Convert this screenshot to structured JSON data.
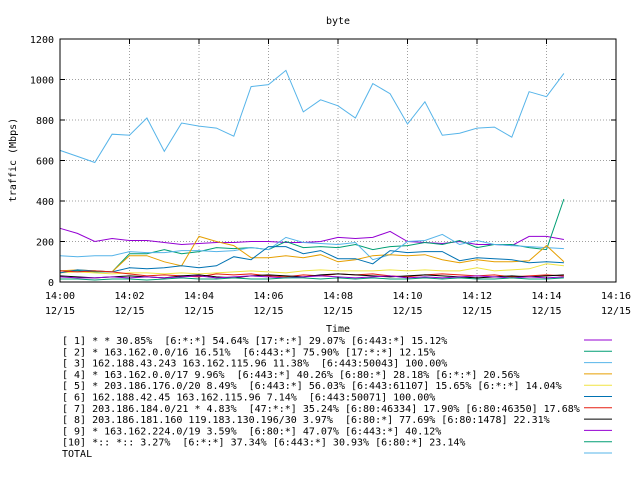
{
  "chart_data": {
    "type": "line",
    "title": "byte",
    "xlabel": "Time",
    "ylabel": "traffic (Mbps)",
    "ylim": [
      0,
      1200
    ],
    "yticks": [
      "0",
      "200",
      "400",
      "600",
      "800",
      "1000",
      "1200"
    ],
    "xlim": [
      0,
      16
    ],
    "xunits": "minutes after 14:00 on 12/15",
    "xticks": [
      {
        "time": "14:00",
        "date": "12/15"
      },
      {
        "time": "14:02",
        "date": "12/15"
      },
      {
        "time": "14:04",
        "date": "12/15"
      },
      {
        "time": "14:06",
        "date": "12/15"
      },
      {
        "time": "14:08",
        "date": "12/15"
      },
      {
        "time": "14:10",
        "date": "12/15"
      },
      {
        "time": "14:12",
        "date": "12/15"
      },
      {
        "time": "14:14",
        "date": "12/15"
      },
      {
        "time": "14:16",
        "date": "12/15"
      }
    ],
    "grid": true,
    "legend_position": "bottom",
    "x": [
      0,
      0.5,
      1,
      1.5,
      2,
      2.5,
      3,
      3.5,
      4,
      4.5,
      5,
      5.5,
      6,
      6.5,
      7,
      7.5,
      8,
      8.5,
      9,
      9.5,
      10,
      10.5,
      11,
      11.5,
      12,
      12.5,
      13,
      13.5,
      14,
      14.5
    ],
    "series": [
      {
        "name": "[ 1] * * 30.85%  [6:*:*] 54.64% [17:*:*] 29.07% [6:443:*] 15.12%",
        "color": "#9400d3",
        "values": [
          265,
          240,
          200,
          215,
          205,
          205,
          195,
          185,
          190,
          195,
          195,
          200,
          200,
          195,
          195,
          200,
          220,
          215,
          220,
          250,
          200,
          195,
          190,
          200,
          185,
          185,
          180,
          225,
          225,
          210
        ]
      },
      {
        "name": "[ 2] * 163.162.0.0/16 16.51%  [6:443:*] 75.90% [17:*:*] 12.15%",
        "color": "#009e73",
        "values": [
          55,
          55,
          50,
          50,
          140,
          140,
          160,
          140,
          150,
          170,
          165,
          170,
          160,
          200,
          170,
          175,
          170,
          185,
          160,
          175,
          180,
          195,
          185,
          205,
          170,
          185,
          185,
          170,
          160,
          410
        ]
      },
      {
        "name": "[ 3] 162.188.43.243 163.162.115.96 11.38%  [6:443:50043] 100.00%",
        "color": "#56b4e9",
        "values": [
          130,
          125,
          130,
          130,
          150,
          145,
          145,
          155,
          155,
          150,
          155,
          170,
          160,
          220,
          195,
          190,
          185,
          195,
          110,
          135,
          200,
          205,
          235,
          185,
          205,
          185,
          180,
          175,
          170,
          165
        ]
      },
      {
        "name": "[ 4] * 163.162.0.0/17 9.96%  [6:443:*] 40.26% [6:80:*] 28.18% [6:*:*] 20.56%",
        "color": "#e69f00",
        "values": [
          55,
          60,
          55,
          50,
          130,
          130,
          100,
          80,
          225,
          200,
          180,
          120,
          120,
          130,
          120,
          135,
          100,
          110,
          130,
          135,
          130,
          135,
          110,
          95,
          110,
          100,
          100,
          105,
          180,
          100
        ]
      },
      {
        "name": "[ 5] * 203.186.176.0/20 8.49%  [6:443:*] 56.03% [6:443:61107] 15.65% [6:*:*] 14.04%",
        "color": "#f0e442",
        "values": [
          45,
          50,
          45,
          40,
          45,
          45,
          40,
          45,
          40,
          45,
          50,
          55,
          50,
          45,
          55,
          60,
          55,
          55,
          55,
          60,
          55,
          60,
          55,
          55,
          70,
          55,
          60,
          65,
          90,
          80
        ]
      },
      {
        "name": "[ 6] 162.188.42.45 163.162.115.96 7.14%  [6:443:50071] 100.00%",
        "color": "#0072b2",
        "values": [
          45,
          60,
          55,
          50,
          70,
          65,
          70,
          80,
          70,
          80,
          125,
          110,
          175,
          175,
          140,
          155,
          115,
          115,
          90,
          155,
          145,
          150,
          150,
          105,
          120,
          115,
          110,
          95,
          100,
          95
        ]
      },
      {
        "name": "[ 7] 203.186.184.0/21 * 4.83%  [47:*:*] 35.24% [6:80:46334] 17.90% [6:80:46350] 17.68%",
        "color": "#e51e10",
        "values": [
          55,
          50,
          55,
          50,
          40,
          30,
          35,
          30,
          25,
          40,
          35,
          40,
          30,
          25,
          35,
          30,
          40,
          35,
          40,
          30,
          25,
          35,
          40,
          35,
          30,
          35,
          25,
          30,
          35,
          30
        ]
      },
      {
        "name": "[ 8] 203.186.181.160 119.183.130.196/30 3.97%  [6:80:*] 77.69% [6:80:1478] 22.31%",
        "color": "#000000",
        "values": [
          30,
          25,
          20,
          25,
          30,
          25,
          20,
          30,
          35,
          25,
          20,
          30,
          35,
          30,
          25,
          35,
          40,
          35,
          30,
          25,
          30,
          35,
          30,
          25,
          20,
          25,
          30,
          25,
          30,
          35
        ]
      },
      {
        "name": "[ 9] * 163.162.224.0/19 3.59%  [6:80:*] 47.07% [6:443:*] 40.12%",
        "color": "#9400d3",
        "values": [
          25,
          20,
          20,
          25,
          20,
          25,
          20,
          25,
          30,
          20,
          25,
          30,
          25,
          20,
          25,
          30,
          25,
          20,
          25,
          30,
          20,
          25,
          20,
          25,
          30,
          25,
          20,
          25,
          20,
          25
        ]
      },
      {
        "name": "[10] *:: *:: 3.27%  [6:*:*] 37.34% [6:443:*] 30.93% [6:80:*] 23.14%",
        "color": "#009e73",
        "values": [
          15,
          15,
          10,
          15,
          15,
          10,
          15,
          20,
          15,
          15,
          20,
          15,
          15,
          20,
          20,
          15,
          20,
          15,
          20,
          15,
          15,
          20,
          15,
          20,
          15,
          15,
          20,
          15,
          15,
          20
        ]
      },
      {
        "name": "TOTAL",
        "color": "#56b4e9",
        "values": [
          650,
          620,
          590,
          730,
          725,
          810,
          645,
          785,
          770,
          760,
          720,
          965,
          975,
          1045,
          840,
          900,
          870,
          810,
          980,
          930,
          780,
          890,
          725,
          735,
          760,
          765,
          715,
          940,
          915,
          1030
        ]
      }
    ]
  }
}
